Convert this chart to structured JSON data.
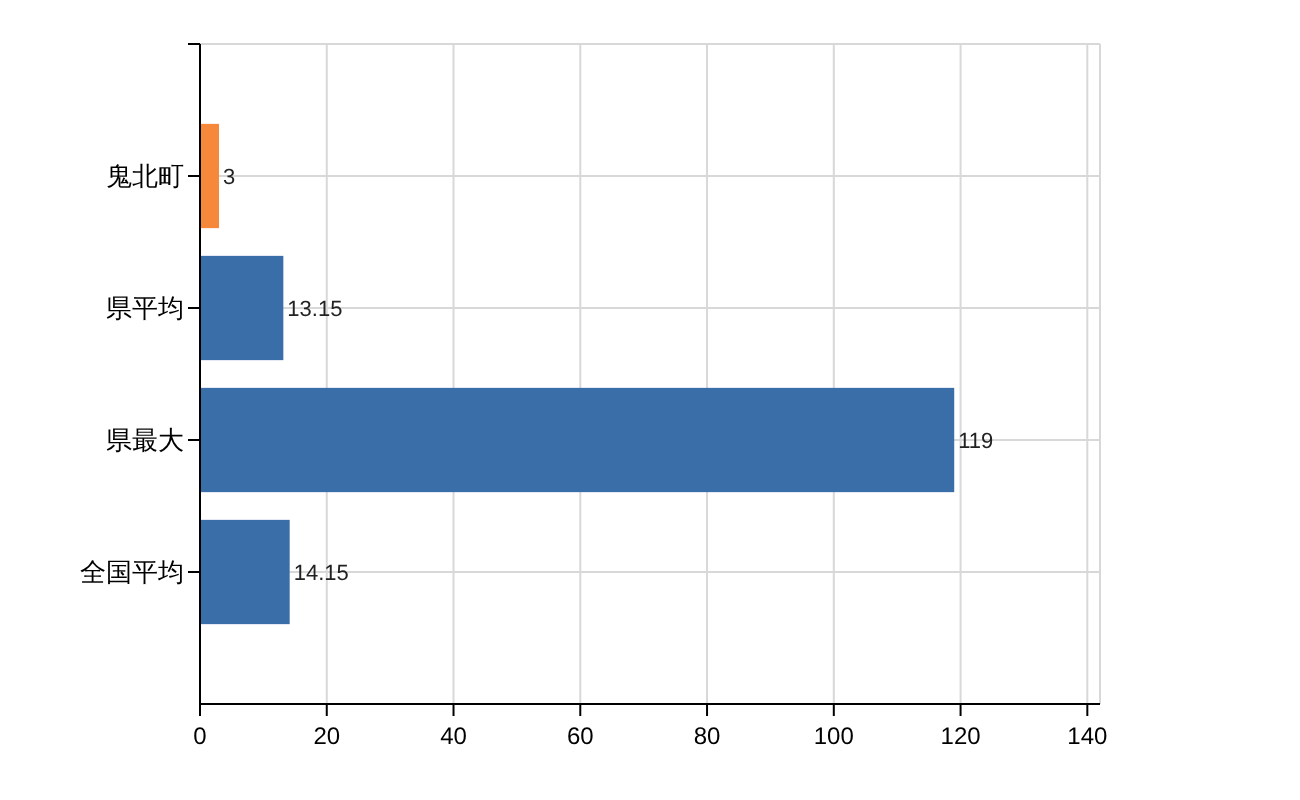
{
  "chart_data": {
    "type": "bar",
    "orientation": "horizontal",
    "categories": [
      "鬼北町",
      "県平均",
      "県最大",
      "全国平均"
    ],
    "values": [
      3,
      13.15,
      119,
      14.15
    ],
    "colors": [
      "#f5883a",
      "#3a6ea8",
      "#3a6ea8",
      "#3a6ea8"
    ],
    "xlim": [
      0,
      142
    ],
    "xticks": [
      0,
      20,
      40,
      60,
      80,
      100,
      120,
      140
    ],
    "grid": true,
    "data_labels": true
  }
}
